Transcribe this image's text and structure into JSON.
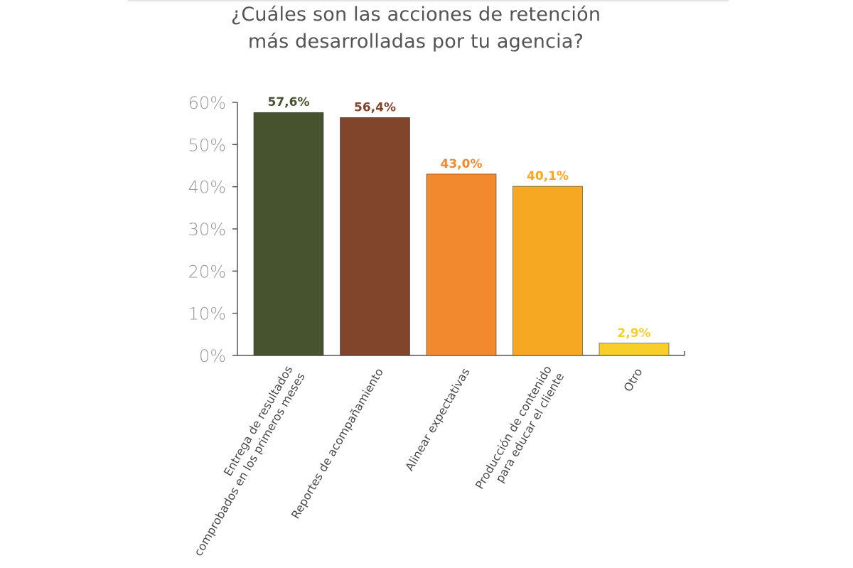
{
  "chart_data": {
    "type": "bar",
    "title_lines": [
      "¿Cuáles son las acciones de retención",
      "más desarrolladas por tu agencia?"
    ],
    "categories": [
      [
        "Entrega de resultados",
        "comprobados en los primeros meses"
      ],
      [
        "Reportes de acompañamiento"
      ],
      [
        "Alinear expectativas"
      ],
      [
        "Producción de contenido",
        "para educar el cliente"
      ],
      [
        "Otro"
      ]
    ],
    "values": [
      57.6,
      56.4,
      43.0,
      40.1,
      2.9
    ],
    "value_labels": [
      "57,6%",
      "56,4%",
      "43,0%",
      "40,1%",
      "2,9%"
    ],
    "colors": [
      "#47532f",
      "#80452b",
      "#f2892f",
      "#f7a823",
      "#f8cf29"
    ],
    "label_colors": [
      "#47532f",
      "#80452b",
      "#f2892f",
      "#f7a823",
      "#f8cf29"
    ],
    "yticks": [
      "0%",
      "10%",
      "20%",
      "30%",
      "40%",
      "50%",
      "60%"
    ],
    "ylim": [
      0,
      60
    ],
    "xlabel": "",
    "ylabel": "",
    "grid": false
  }
}
